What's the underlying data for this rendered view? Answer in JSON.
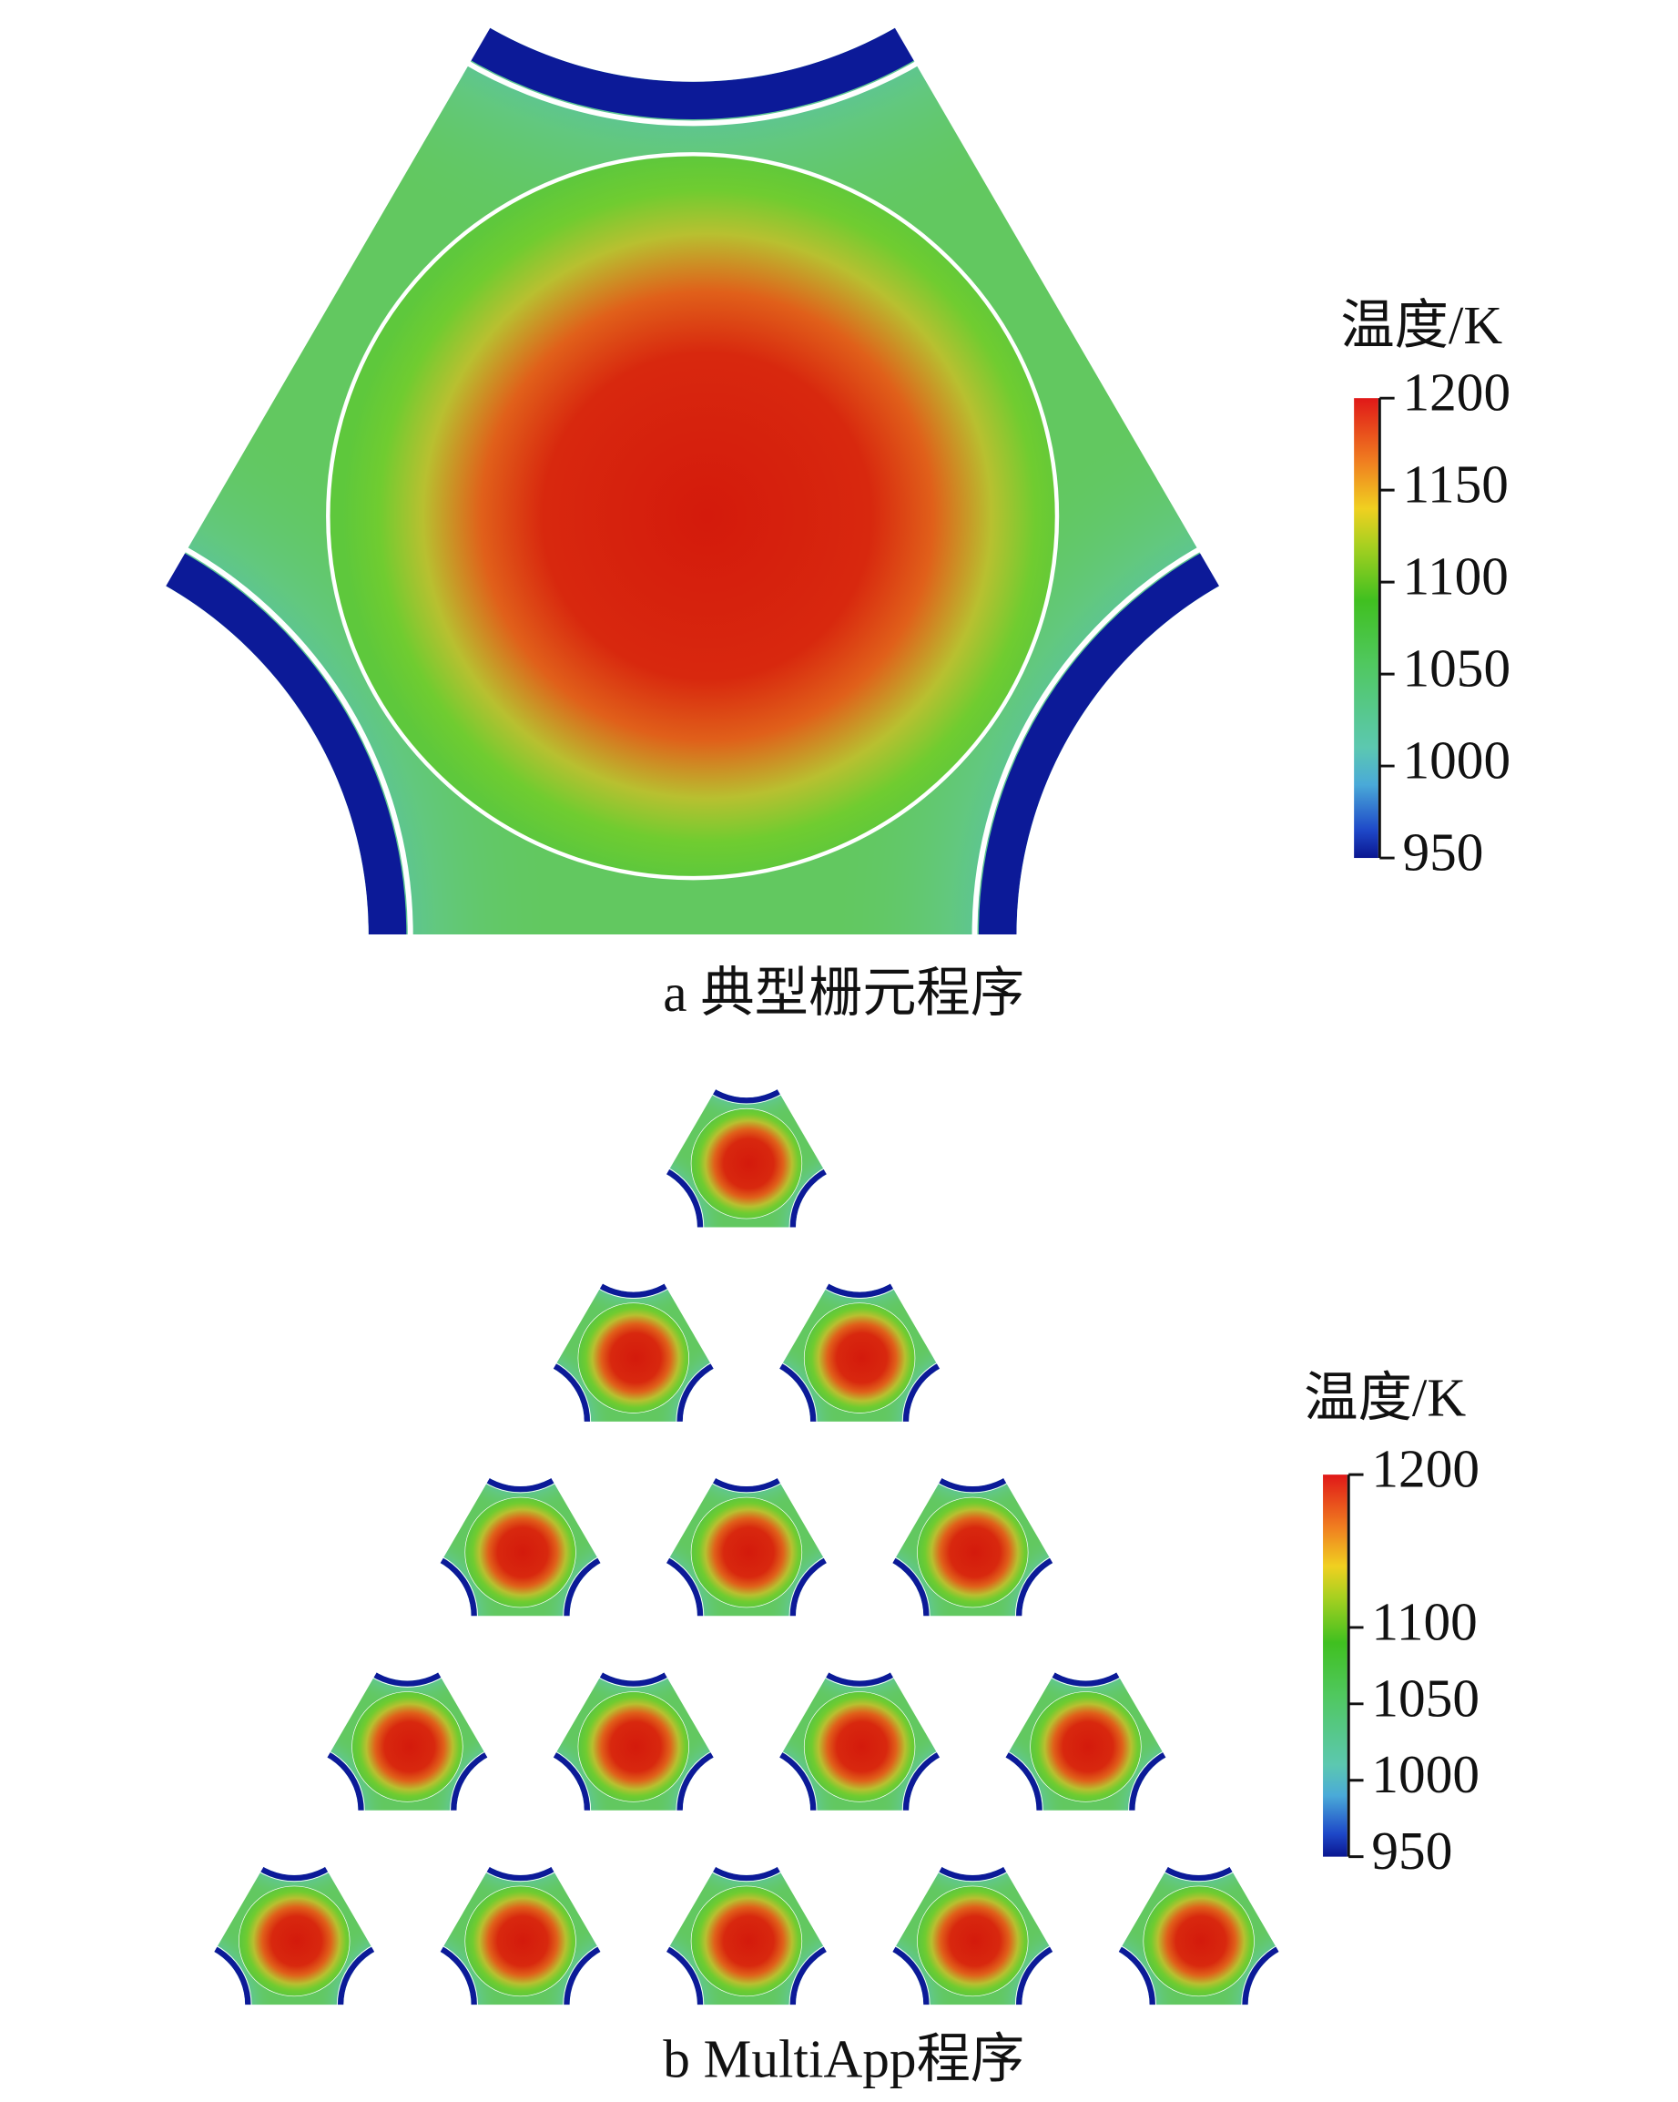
{
  "chart_data": [
    {
      "type": "contour",
      "caption": "a 典型栅元程序",
      "colorbar": {
        "label": "温度/K",
        "lim": [
          950,
          1200
        ],
        "ticks": [
          950,
          1000,
          1050,
          1100,
          1150,
          1200
        ]
      }
    },
    {
      "type": "contour-array",
      "caption": "b MultiApp程序",
      "colorbar": {
        "label": "温度/K",
        "lim": [
          950,
          1200
        ],
        "ticks": [
          950,
          1000,
          1050,
          1100,
          1200
        ]
      }
    }
  ]
}
